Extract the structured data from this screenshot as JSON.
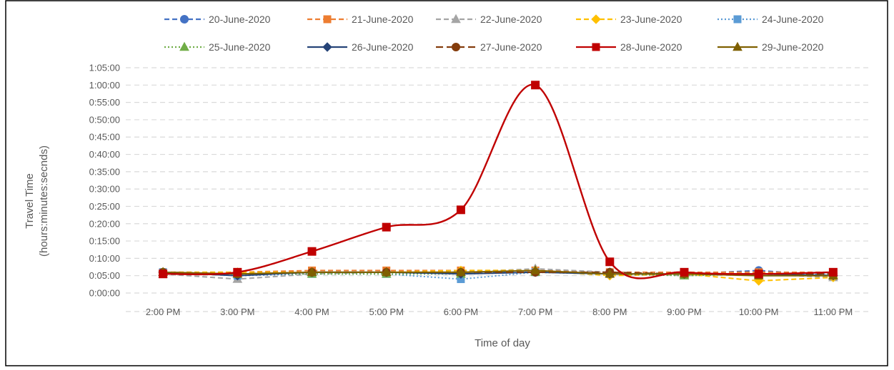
{
  "chart_data": {
    "type": "line",
    "title": "",
    "xlabel": "Time of day",
    "ylabel_line1": "Travel Time",
    "ylabel_line2": "(hours:minutes:secnds)",
    "categories": [
      "2:00 PM",
      "3:00 PM",
      "4:00 PM",
      "5:00 PM",
      "6:00 PM",
      "7:00 PM",
      "8:00 PM",
      "9:00 PM",
      "10:00 PM",
      "11:00 PM"
    ],
    "y_unit": "h:mm:ss",
    "ylim": [
      "0:00:00",
      "1:05:00"
    ],
    "y_ticks": [
      "0:00:00",
      "0:05:00",
      "0:10:00",
      "0:15:00",
      "0:20:00",
      "0:25:00",
      "0:30:00",
      "0:35:00",
      "0:40:00",
      "0:45:00",
      "0:50:00",
      "0:55:00",
      "1:00:00",
      "1:05:00"
    ],
    "grid": true,
    "legend_position": "top",
    "series": [
      {
        "name": "20-June-2020",
        "color": "#4472C4",
        "dash": "dashed",
        "marker": "circle",
        "smooth": false,
        "values": [
          "0:06:00",
          "0:05:30",
          "0:06:00",
          "0:06:00",
          "0:06:00",
          "0:06:00",
          "0:06:00",
          "0:05:30",
          "0:06:30",
          "0:05:00"
        ]
      },
      {
        "name": "21-June-2020",
        "color": "#ED7D31",
        "dash": "dashed",
        "marker": "square",
        "smooth": false,
        "values": [
          "0:06:00",
          "0:06:00",
          "0:06:30",
          "0:06:30",
          "0:06:30",
          "0:06:30",
          "0:06:00",
          "0:06:00",
          "0:06:00",
          "0:06:00"
        ]
      },
      {
        "name": "22-June-2020",
        "color": "#A5A5A5",
        "dash": "dashed",
        "marker": "triangle",
        "smooth": false,
        "values": [
          "0:05:30",
          "0:04:00",
          "0:05:30",
          "0:06:00",
          "0:06:00",
          "0:07:00",
          "0:06:00",
          "0:05:00",
          "0:05:30",
          "0:04:30"
        ]
      },
      {
        "name": "23-June-2020",
        "color": "#FFC000",
        "dash": "dashed",
        "marker": "diamond",
        "smooth": false,
        "values": [
          "0:06:00",
          "0:06:00",
          "0:06:00",
          "0:06:00",
          "0:06:30",
          "0:06:30",
          "0:05:00",
          "0:05:30",
          "0:03:30",
          "0:04:30"
        ]
      },
      {
        "name": "24-June-2020",
        "color": "#5B9BD5",
        "dash": "dotted",
        "marker": "square",
        "smooth": false,
        "values": [
          "0:06:00",
          "0:05:00",
          "0:05:30",
          "0:05:30",
          "0:04:00",
          "0:06:00",
          "0:05:30",
          "0:05:30",
          "0:05:30",
          "0:05:30"
        ]
      },
      {
        "name": "25-June-2020",
        "color": "#70AD47",
        "dash": "dotted",
        "marker": "triangle",
        "smooth": false,
        "values": [
          "0:06:00",
          "0:05:30",
          "0:05:30",
          "0:05:30",
          "0:05:30",
          "0:06:00",
          "0:05:30",
          "0:05:00",
          "0:05:30",
          "0:05:00"
        ]
      },
      {
        "name": "26-June-2020",
        "color": "#264478",
        "dash": "solid",
        "marker": "diamond",
        "smooth": false,
        "values": [
          "0:06:00",
          "0:05:00",
          "0:06:00",
          "0:06:00",
          "0:05:30",
          "0:06:00",
          "0:05:30",
          "0:05:30",
          "0:05:30",
          "0:05:00"
        ]
      },
      {
        "name": "27-June-2020",
        "color": "#843C0C",
        "dash": "longdash",
        "marker": "circle",
        "smooth": false,
        "values": [
          "0:06:00",
          "0:05:30",
          "0:06:00",
          "0:06:00",
          "0:06:00",
          "0:06:00",
          "0:06:00",
          "0:05:30",
          "0:05:30",
          "0:05:30"
        ]
      },
      {
        "name": "28-June-2020",
        "color": "#C00000",
        "dash": "solid",
        "marker": "square",
        "smooth": true,
        "values": [
          "0:05:30",
          "0:06:00",
          "0:12:00",
          "0:19:00",
          "0:24:00",
          "1:00:00",
          "0:09:00",
          "0:06:00",
          "0:05:30",
          "0:06:00"
        ]
      },
      {
        "name": "29-June-2020",
        "color": "#7F6000",
        "dash": "solid",
        "marker": "triangle",
        "smooth": false,
        "values": [
          "0:06:00",
          "0:05:30",
          "0:06:00",
          "0:06:00",
          "0:06:00",
          "0:06:30",
          "0:05:30",
          "0:05:30",
          "0:05:00",
          "0:05:00"
        ]
      }
    ]
  }
}
